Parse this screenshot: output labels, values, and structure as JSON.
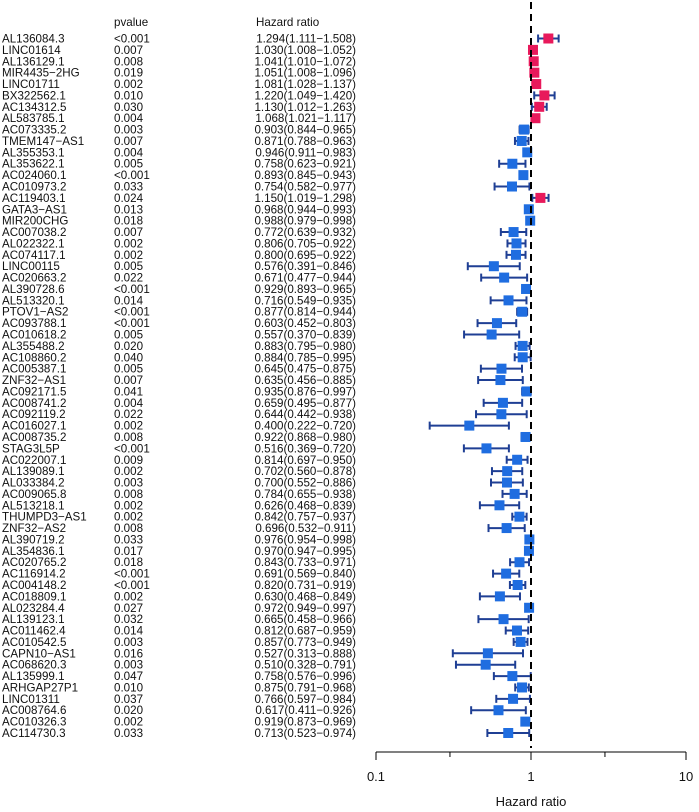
{
  "chart_data": {
    "type": "forest",
    "headers": {
      "pvalue": "pvalue",
      "hr": "Hazard ratio"
    },
    "xlabel": "Hazard ratio",
    "x_scale": "log",
    "xlim": [
      0.1,
      10
    ],
    "ticks": [
      "0.1",
      "1",
      "10"
    ],
    "reference_line": 1,
    "colors": {
      "risk": "#e8195b",
      "protective": "#1f6de0",
      "ci": "#1f3f94",
      "ref": "#000000"
    },
    "rows": [
      {
        "gene": "AL136084.3",
        "p": "<0.001",
        "hr_text": "1.294(1.111−1.508)",
        "hr": 1.294,
        "lo": 1.111,
        "hi": 1.508
      },
      {
        "gene": "LINC01614",
        "p": "0.007",
        "hr_text": "1.030(1.008−1.052)",
        "hr": 1.03,
        "lo": 1.008,
        "hi": 1.052
      },
      {
        "gene": "AL136129.1",
        "p": "0.008",
        "hr_text": "1.041(1.010−1.072)",
        "hr": 1.041,
        "lo": 1.01,
        "hi": 1.072
      },
      {
        "gene": "MIR4435−2HG",
        "p": "0.019",
        "hr_text": "1.051(1.008−1.096)",
        "hr": 1.051,
        "lo": 1.008,
        "hi": 1.096
      },
      {
        "gene": "LINC01711",
        "p": "0.002",
        "hr_text": "1.081(1.028−1.137)",
        "hr": 1.081,
        "lo": 1.028,
        "hi": 1.137
      },
      {
        "gene": "BX322562.1",
        "p": "0.010",
        "hr_text": "1.220(1.049−1.420)",
        "hr": 1.22,
        "lo": 1.049,
        "hi": 1.42
      },
      {
        "gene": "AC134312.5",
        "p": "0.030",
        "hr_text": "1.130(1.012−1.263)",
        "hr": 1.13,
        "lo": 1.012,
        "hi": 1.263
      },
      {
        "gene": "AL583785.1",
        "p": "0.004",
        "hr_text": "1.068(1.021−1.117)",
        "hr": 1.068,
        "lo": 1.021,
        "hi": 1.117
      },
      {
        "gene": "AC073335.2",
        "p": "0.003",
        "hr_text": "0.903(0.844−0.965)",
        "hr": 0.903,
        "lo": 0.844,
        "hi": 0.965
      },
      {
        "gene": "TMEM147−AS1",
        "p": "0.007",
        "hr_text": "0.871(0.788−0.963)",
        "hr": 0.871,
        "lo": 0.788,
        "hi": 0.963
      },
      {
        "gene": "AL355353.1",
        "p": "0.004",
        "hr_text": "0.946(0.911−0.983)",
        "hr": 0.946,
        "lo": 0.911,
        "hi": 0.983
      },
      {
        "gene": "AL353622.1",
        "p": "0.005",
        "hr_text": "0.758(0.623−0.921)",
        "hr": 0.758,
        "lo": 0.623,
        "hi": 0.921
      },
      {
        "gene": "AC024060.1",
        "p": "<0.001",
        "hr_text": "0.893(0.845−0.943)",
        "hr": 0.893,
        "lo": 0.845,
        "hi": 0.943
      },
      {
        "gene": "AC010973.2",
        "p": "0.033",
        "hr_text": "0.754(0.582−0.977)",
        "hr": 0.754,
        "lo": 0.582,
        "hi": 0.977
      },
      {
        "gene": "AC119403.1",
        "p": "0.024",
        "hr_text": "1.150(1.019−1.298)",
        "hr": 1.15,
        "lo": 1.019,
        "hi": 1.298
      },
      {
        "gene": "GATA3−AS1",
        "p": "0.013",
        "hr_text": "0.968(0.944−0.993)",
        "hr": 0.968,
        "lo": 0.944,
        "hi": 0.993
      },
      {
        "gene": "MIR200CHG",
        "p": "0.018",
        "hr_text": "0.988(0.979−0.998)",
        "hr": 0.988,
        "lo": 0.979,
        "hi": 0.998
      },
      {
        "gene": "AC007038.2",
        "p": "0.007",
        "hr_text": "0.772(0.639−0.932)",
        "hr": 0.772,
        "lo": 0.639,
        "hi": 0.932
      },
      {
        "gene": "AL022322.1",
        "p": "0.002",
        "hr_text": "0.806(0.705−0.922)",
        "hr": 0.806,
        "lo": 0.705,
        "hi": 0.922
      },
      {
        "gene": "AC074117.1",
        "p": "0.002",
        "hr_text": "0.800(0.695−0.922)",
        "hr": 0.8,
        "lo": 0.695,
        "hi": 0.922
      },
      {
        "gene": "LINC00115",
        "p": "0.005",
        "hr_text": "0.576(0.391−0.846)",
        "hr": 0.576,
        "lo": 0.391,
        "hi": 0.846
      },
      {
        "gene": "AC020663.2",
        "p": "0.022",
        "hr_text": "0.671(0.477−0.944)",
        "hr": 0.671,
        "lo": 0.477,
        "hi": 0.944
      },
      {
        "gene": "AL390728.6",
        "p": "<0.001",
        "hr_text": "0.929(0.893−0.965)",
        "hr": 0.929,
        "lo": 0.893,
        "hi": 0.965
      },
      {
        "gene": "AL513320.1",
        "p": "0.014",
        "hr_text": "0.716(0.549−0.935)",
        "hr": 0.716,
        "lo": 0.549,
        "hi": 0.935
      },
      {
        "gene": "PTOV1−AS2",
        "p": "<0.001",
        "hr_text": "0.877(0.814−0.944)",
        "hr": 0.877,
        "lo": 0.814,
        "hi": 0.944
      },
      {
        "gene": "AC093788.1",
        "p": "<0.001",
        "hr_text": "0.603(0.452−0.803)",
        "hr": 0.603,
        "lo": 0.452,
        "hi": 0.803
      },
      {
        "gene": "AC010618.2",
        "p": "0.005",
        "hr_text": "0.557(0.370−0.839)",
        "hr": 0.557,
        "lo": 0.37,
        "hi": 0.839
      },
      {
        "gene": "AL355488.2",
        "p": "0.020",
        "hr_text": "0.883(0.795−0.980)",
        "hr": 0.883,
        "lo": 0.795,
        "hi": 0.98
      },
      {
        "gene": "AC108860.2",
        "p": "0.040",
        "hr_text": "0.884(0.785−0.995)",
        "hr": 0.884,
        "lo": 0.785,
        "hi": 0.995
      },
      {
        "gene": "AC005387.1",
        "p": "0.005",
        "hr_text": "0.645(0.475−0.875)",
        "hr": 0.645,
        "lo": 0.475,
        "hi": 0.875
      },
      {
        "gene": "ZNF32−AS1",
        "p": "0.007",
        "hr_text": "0.635(0.456−0.885)",
        "hr": 0.635,
        "lo": 0.456,
        "hi": 0.885
      },
      {
        "gene": "AC092171.5",
        "p": "0.041",
        "hr_text": "0.935(0.876−0.997)",
        "hr": 0.935,
        "lo": 0.876,
        "hi": 0.997
      },
      {
        "gene": "AC008741.2",
        "p": "0.004",
        "hr_text": "0.659(0.495−0.877)",
        "hr": 0.659,
        "lo": 0.495,
        "hi": 0.877
      },
      {
        "gene": "AC092119.2",
        "p": "0.022",
        "hr_text": "0.644(0.442−0.938)",
        "hr": 0.644,
        "lo": 0.442,
        "hi": 0.938
      },
      {
        "gene": "AC016027.1",
        "p": "0.002",
        "hr_text": "0.400(0.222−0.720)",
        "hr": 0.4,
        "lo": 0.222,
        "hi": 0.72
      },
      {
        "gene": "AC008735.2",
        "p": "0.008",
        "hr_text": "0.922(0.868−0.980)",
        "hr": 0.922,
        "lo": 0.868,
        "hi": 0.98
      },
      {
        "gene": "STAG3L5P",
        "p": "<0.001",
        "hr_text": "0.516(0.369−0.720)",
        "hr": 0.516,
        "lo": 0.369,
        "hi": 0.72
      },
      {
        "gene": "AC022007.1",
        "p": "0.009",
        "hr_text": "0.814(0.697−0.950)",
        "hr": 0.814,
        "lo": 0.697,
        "hi": 0.95
      },
      {
        "gene": "AL139089.1",
        "p": "0.002",
        "hr_text": "0.702(0.560−0.878)",
        "hr": 0.702,
        "lo": 0.56,
        "hi": 0.878
      },
      {
        "gene": "AL033384.2",
        "p": "0.003",
        "hr_text": "0.700(0.552−0.886)",
        "hr": 0.7,
        "lo": 0.552,
        "hi": 0.886
      },
      {
        "gene": "AC009065.8",
        "p": "0.008",
        "hr_text": "0.784(0.655−0.938)",
        "hr": 0.784,
        "lo": 0.655,
        "hi": 0.938
      },
      {
        "gene": "AL513218.1",
        "p": "0.002",
        "hr_text": "0.626(0.468−0.839)",
        "hr": 0.626,
        "lo": 0.468,
        "hi": 0.839
      },
      {
        "gene": "THUMPD3−AS1",
        "p": "0.002",
        "hr_text": "0.842(0.757−0.937)",
        "hr": 0.842,
        "lo": 0.757,
        "hi": 0.937
      },
      {
        "gene": "ZNF32−AS2",
        "p": "0.008",
        "hr_text": "0.696(0.532−0.911)",
        "hr": 0.696,
        "lo": 0.532,
        "hi": 0.911
      },
      {
        "gene": "AL390719.2",
        "p": "0.033",
        "hr_text": "0.976(0.954−0.998)",
        "hr": 0.976,
        "lo": 0.954,
        "hi": 0.998
      },
      {
        "gene": "AL354836.1",
        "p": "0.017",
        "hr_text": "0.970(0.947−0.995)",
        "hr": 0.97,
        "lo": 0.947,
        "hi": 0.995
      },
      {
        "gene": "AC020765.2",
        "p": "0.018",
        "hr_text": "0.843(0.733−0.971)",
        "hr": 0.843,
        "lo": 0.733,
        "hi": 0.971
      },
      {
        "gene": "AC116914.2",
        "p": "<0.001",
        "hr_text": "0.691(0.569−0.840)",
        "hr": 0.691,
        "lo": 0.569,
        "hi": 0.84
      },
      {
        "gene": "AC004148.2",
        "p": "<0.001",
        "hr_text": "0.820(0.731−0.919)",
        "hr": 0.82,
        "lo": 0.731,
        "hi": 0.919
      },
      {
        "gene": "AC018809.1",
        "p": "0.002",
        "hr_text": "0.630(0.468−0.849)",
        "hr": 0.63,
        "lo": 0.468,
        "hi": 0.849
      },
      {
        "gene": "AL023284.4",
        "p": "0.027",
        "hr_text": "0.972(0.949−0.997)",
        "hr": 0.972,
        "lo": 0.949,
        "hi": 0.997
      },
      {
        "gene": "AL139123.1",
        "p": "0.032",
        "hr_text": "0.665(0.458−0.966)",
        "hr": 0.665,
        "lo": 0.458,
        "hi": 0.966
      },
      {
        "gene": "AC011462.4",
        "p": "0.014",
        "hr_text": "0.812(0.687−0.959)",
        "hr": 0.812,
        "lo": 0.687,
        "hi": 0.959
      },
      {
        "gene": "AC010542.5",
        "p": "0.003",
        "hr_text": "0.857(0.773−0.949)",
        "hr": 0.857,
        "lo": 0.773,
        "hi": 0.949
      },
      {
        "gene": "CAPN10−AS1",
        "p": "0.016",
        "hr_text": "0.527(0.313−0.888)",
        "hr": 0.527,
        "lo": 0.313,
        "hi": 0.888
      },
      {
        "gene": "AC068620.3",
        "p": "0.003",
        "hr_text": "0.510(0.328−0.791)",
        "hr": 0.51,
        "lo": 0.328,
        "hi": 0.791
      },
      {
        "gene": "AL135999.1",
        "p": "0.047",
        "hr_text": "0.758(0.576−0.996)",
        "hr": 0.758,
        "lo": 0.576,
        "hi": 0.996
      },
      {
        "gene": "ARHGAP27P1",
        "p": "0.010",
        "hr_text": "0.875(0.791−0.968)",
        "hr": 0.875,
        "lo": 0.791,
        "hi": 0.968
      },
      {
        "gene": "LINC01311",
        "p": "0.037",
        "hr_text": "0.766(0.597−0.984)",
        "hr": 0.766,
        "lo": 0.597,
        "hi": 0.984
      },
      {
        "gene": "AC008764.6",
        "p": "0.020",
        "hr_text": "0.617(0.411−0.926)",
        "hr": 0.617,
        "lo": 0.411,
        "hi": 0.926
      },
      {
        "gene": "AC010326.3",
        "p": "0.002",
        "hr_text": "0.919(0.873−0.969)",
        "hr": 0.919,
        "lo": 0.873,
        "hi": 0.969
      },
      {
        "gene": "AC114730.3",
        "p": "0.033",
        "hr_text": "0.713(0.523−0.974)",
        "hr": 0.713,
        "lo": 0.523,
        "hi": 0.974
      }
    ]
  }
}
